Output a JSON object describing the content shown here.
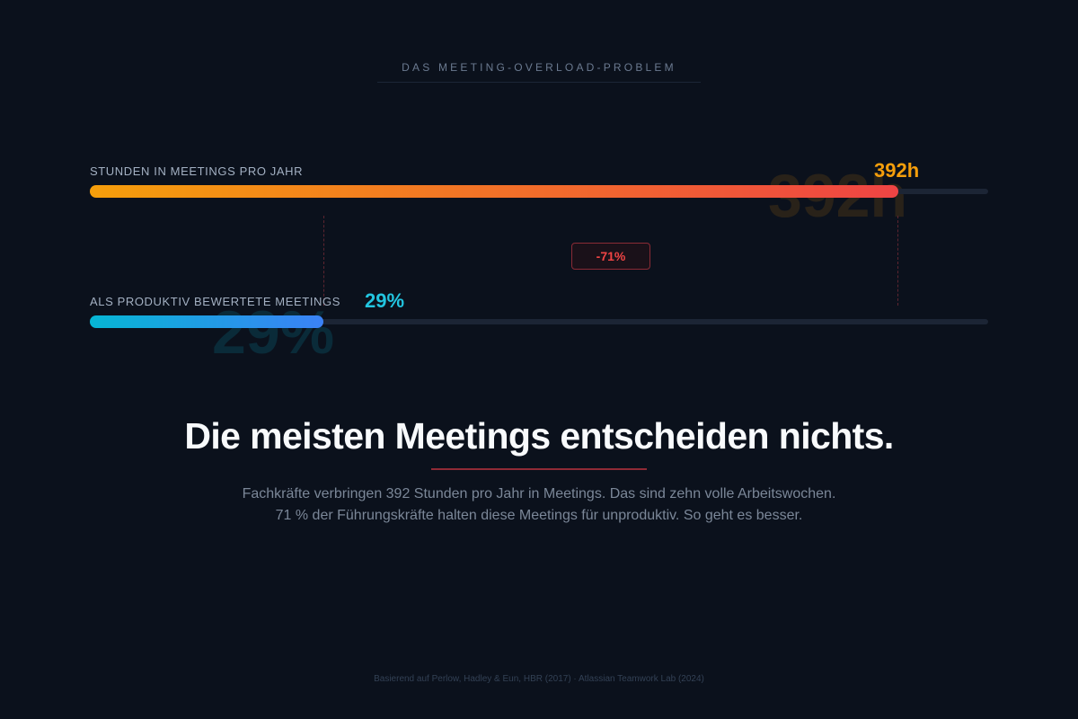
{
  "eyebrow": "DAS MEETING-OVERLOAD-PROBLEM",
  "bars": [
    {
      "label": "STUNDEN IN MEETINGS PRO JAHR",
      "value_text": "392h",
      "ghost_text": "392h",
      "fill_fraction": 0.9,
      "gradient": [
        "#f59e0b",
        "#ef4444"
      ],
      "value_color": "#f59e0b"
    },
    {
      "label": "ALS PRODUKTIV BEWERTETE MEETINGS",
      "value_text": "29%",
      "ghost_text": "29%",
      "fill_fraction": 0.26,
      "gradient": [
        "#06b6d4",
        "#3b82f6"
      ],
      "value_color": "#22c5e0"
    }
  ],
  "delta_badge": "-71%",
  "headline": "Die meisten Meetings entscheiden nichts.",
  "subtext": {
    "line1": "Fachkräfte verbringen 392 Stunden pro Jahr in Meetings. Das sind zehn volle Arbeitswochen.",
    "line2": "71 % der Führungskräfte halten diese Meetings für unproduktiv. So geht es besser."
  },
  "source": "Basierend auf Perlow, Hadley & Eun, HBR (2017) · Atlassian Teamwork Lab (2024)",
  "colors": {
    "background": "#0b111c",
    "accent_red": "#ef4444",
    "accent_amber": "#f59e0b",
    "accent_cyan": "#06b6d4"
  }
}
